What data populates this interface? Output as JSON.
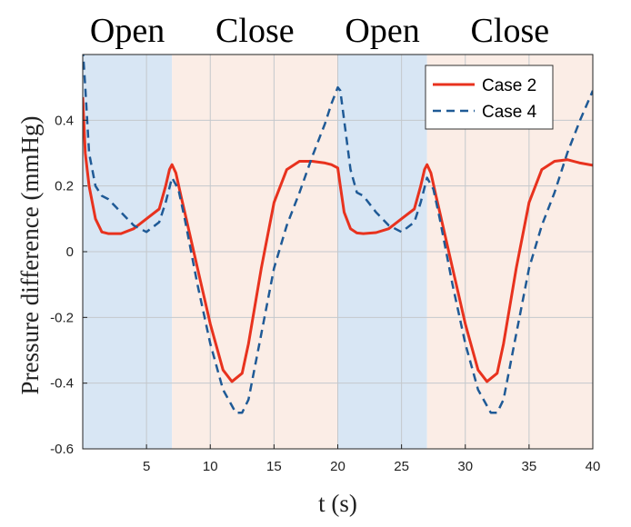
{
  "chart_data": {
    "type": "line",
    "xlabel": "t (s)",
    "ylabel": "Pressure difference (mmHg)",
    "xlim": [
      0,
      40
    ],
    "ylim": [
      -0.6,
      0.6
    ],
    "x_ticks": [
      5,
      10,
      15,
      20,
      25,
      30,
      35,
      40
    ],
    "x_tick_labels": [
      "5",
      "10",
      "15",
      "20",
      "25",
      "30",
      "35",
      "40"
    ],
    "y_ticks": [
      -0.6,
      -0.4,
      -0.2,
      0,
      0.2,
      0.4
    ],
    "y_tick_labels": [
      "-0.6",
      "-0.4",
      "-0.2",
      "0",
      "0.2",
      "0.4"
    ],
    "grid": true,
    "legend_position": "top-right",
    "phases": [
      {
        "label": "Open",
        "start": 0,
        "end": 7,
        "color": "#d8e6f4"
      },
      {
        "label": "Close",
        "start": 7,
        "end": 20,
        "color": "#fbede6"
      },
      {
        "label": "Open",
        "start": 20,
        "end": 27,
        "color": "#d8e6f4"
      },
      {
        "label": "Close",
        "start": 27,
        "end": 40,
        "color": "#fbede6"
      }
    ],
    "series": [
      {
        "name": "Case 2",
        "color": "#e8321e",
        "style": "solid",
        "x": [
          0,
          0.2,
          0.5,
          1,
          1.5,
          2,
          3,
          4,
          5,
          6,
          6.5,
          6.8,
          7,
          7.3,
          7.7,
          8,
          9,
          10,
          11,
          11.7,
          12.5,
          13,
          14,
          15,
          16,
          17,
          18,
          19,
          19.5,
          20,
          20.2,
          20.5,
          21,
          21.5,
          22,
          23,
          24,
          25,
          26,
          26.5,
          26.8,
          27,
          27.3,
          27.7,
          28,
          29,
          30,
          31,
          31.7,
          32.5,
          33,
          34,
          35,
          36,
          37,
          38,
          39,
          40
        ],
        "y": [
          0.47,
          0.3,
          0.2,
          0.1,
          0.06,
          0.055,
          0.055,
          0.07,
          0.1,
          0.13,
          0.2,
          0.25,
          0.265,
          0.24,
          0.17,
          0.12,
          -0.05,
          -0.22,
          -0.36,
          -0.395,
          -0.37,
          -0.28,
          -0.05,
          0.15,
          0.25,
          0.275,
          0.275,
          0.27,
          0.265,
          0.255,
          0.2,
          0.12,
          0.07,
          0.057,
          0.055,
          0.058,
          0.07,
          0.1,
          0.13,
          0.2,
          0.25,
          0.265,
          0.24,
          0.17,
          0.12,
          -0.05,
          -0.22,
          -0.36,
          -0.395,
          -0.37,
          -0.28,
          -0.05,
          0.15,
          0.25,
          0.275,
          0.28,
          0.27,
          0.263
        ]
      },
      {
        "name": "Case 4",
        "color": "#1f5a96",
        "style": "dashed",
        "x": [
          0,
          0.2,
          0.5,
          1,
          1.5,
          2,
          3,
          4,
          5,
          6,
          6.5,
          7,
          7.5,
          8,
          9,
          10,
          11,
          12,
          12.5,
          13,
          14,
          15,
          16,
          17,
          18,
          19,
          19.5,
          20,
          20.2,
          20.5,
          21,
          21.5,
          22,
          23,
          24,
          25,
          26,
          26.5,
          27,
          27.5,
          28,
          29,
          30,
          31,
          32,
          32.5,
          33,
          34,
          35,
          36,
          37,
          38,
          39,
          40
        ],
        "y": [
          0.62,
          0.5,
          0.3,
          0.2,
          0.17,
          0.16,
          0.12,
          0.08,
          0.06,
          0.09,
          0.15,
          0.225,
          0.19,
          0.1,
          -0.1,
          -0.28,
          -0.42,
          -0.49,
          -0.49,
          -0.45,
          -0.25,
          -0.05,
          0.08,
          0.18,
          0.29,
          0.39,
          0.45,
          0.5,
          0.49,
          0.4,
          0.25,
          0.18,
          0.17,
          0.12,
          0.08,
          0.06,
          0.09,
          0.15,
          0.225,
          0.19,
          0.1,
          -0.1,
          -0.28,
          -0.42,
          -0.49,
          -0.49,
          -0.45,
          -0.25,
          -0.05,
          0.08,
          0.18,
          0.3,
          0.4,
          0.49
        ]
      }
    ]
  }
}
